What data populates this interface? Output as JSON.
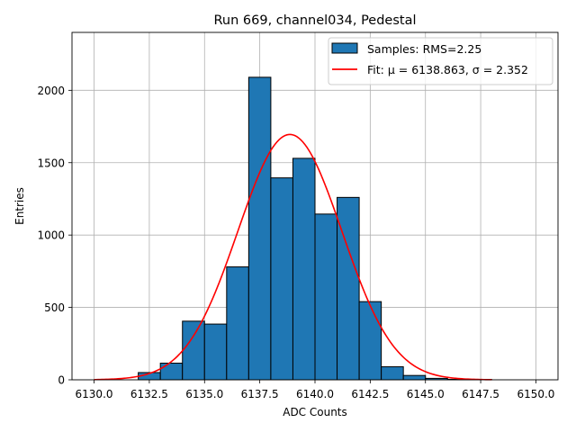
{
  "chart_data": {
    "type": "bar",
    "title": "Run 669, channel034, Pedestal",
    "xlabel": "ADC Counts",
    "ylabel": "Entries",
    "xlim": [
      6129.0,
      6151.0
    ],
    "ylim": [
      0,
      2400
    ],
    "grid": true,
    "legend_position": "top-right",
    "x_ticks": [
      6130.0,
      6132.5,
      6135.0,
      6137.5,
      6140.0,
      6142.5,
      6145.0,
      6147.5,
      6150.0
    ],
    "x_tick_labels": [
      "6130.0",
      "6132.5",
      "6135.0",
      "6137.5",
      "6140.0",
      "6142.5",
      "6145.0",
      "6147.5",
      "6150.0"
    ],
    "y_ticks": [
      0,
      500,
      1000,
      1500,
      2000
    ],
    "y_tick_labels": [
      "0",
      "500",
      "1000",
      "1500",
      "2000"
    ],
    "histogram": {
      "name": "Samples: RMS=2.25",
      "color": "#1f77b4",
      "edge_color": "#000000",
      "bin_edges": [
        6132.0,
        6133.0,
        6134.0,
        6135.0,
        6136.0,
        6137.0,
        6138.0,
        6139.0,
        6140.0,
        6141.0,
        6142.0,
        6143.0,
        6144.0,
        6145.0,
        6146.0,
        6147.0,
        6148.0
      ],
      "counts": [
        50,
        115,
        405,
        385,
        780,
        2090,
        1395,
        1530,
        1145,
        1260,
        540,
        90,
        30,
        10,
        3,
        2
      ]
    },
    "fit": {
      "name": "Fit: μ = 6138.863, σ = 2.352",
      "color": "#ff0000",
      "mu": 6138.863,
      "sigma": 2.352,
      "amplitude": 1695,
      "x_range": [
        6130.0,
        6148.0
      ]
    }
  }
}
